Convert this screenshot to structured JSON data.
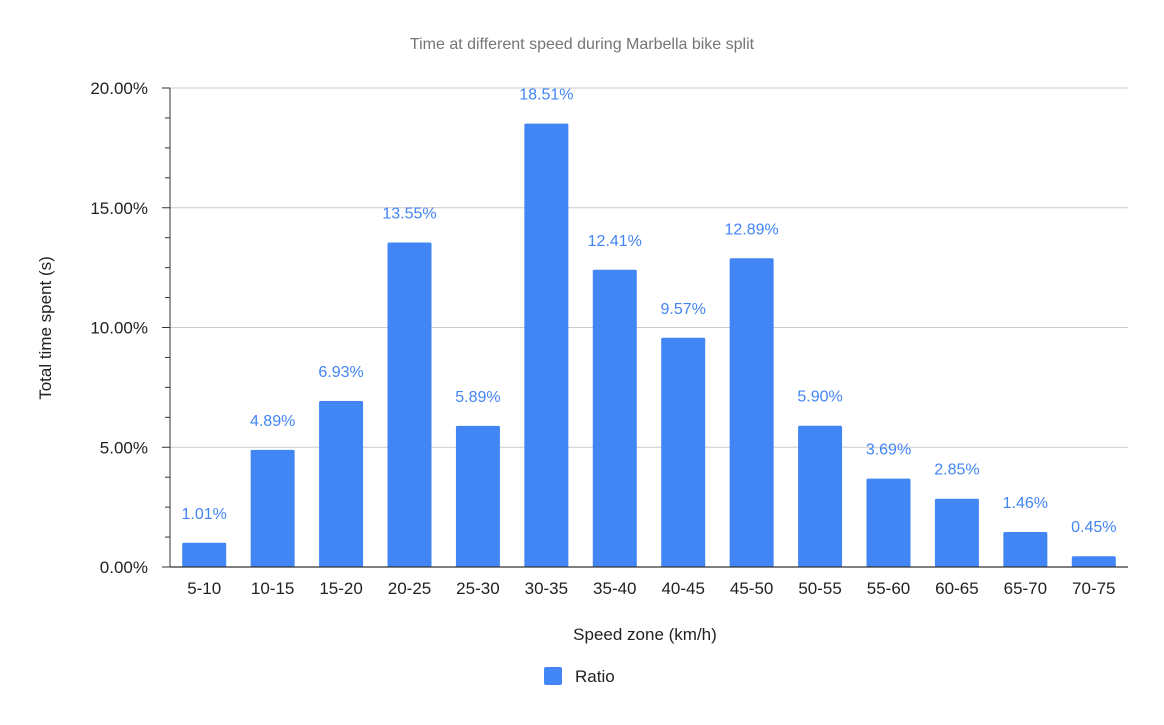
{
  "chart_data": {
    "type": "bar",
    "title": "Time at different speed during Marbella bike split",
    "xlabel": "Speed zone (km/h)",
    "ylabel": "Total time spent (s)",
    "categories": [
      "5-10",
      "10-15",
      "15-20",
      "20-25",
      "25-30",
      "30-35",
      "35-40",
      "40-45",
      "45-50",
      "50-55",
      "55-60",
      "60-65",
      "65-70",
      "70-75"
    ],
    "series": [
      {
        "name": "Ratio",
        "values": [
          1.01,
          4.89,
          6.93,
          13.55,
          5.89,
          18.51,
          12.41,
          9.57,
          12.89,
          5.9,
          3.69,
          2.85,
          1.46,
          0.45
        ],
        "labels": [
          "1.01%",
          "4.89%",
          "6.93%",
          "13.55%",
          "5.89%",
          "18.51%",
          "12.41%",
          "9.57%",
          "12.89%",
          "5.90%",
          "3.69%",
          "2.85%",
          "1.46%",
          "0.45%"
        ],
        "color": "#4285f4"
      }
    ],
    "ylim": [
      0,
      20
    ],
    "yticks": [
      0,
      5,
      10,
      15,
      20
    ],
    "ytick_labels": [
      "0.00%",
      "5.00%",
      "10.00%",
      "15.00%",
      "20.00%"
    ],
    "grid": true,
    "legend_position": "bottom"
  },
  "colors": {
    "bar": "#4285f4",
    "data_label": "#4285f4",
    "grid": "#cccccc",
    "axis": "#333333",
    "title": "#757575",
    "text": "#222222"
  }
}
